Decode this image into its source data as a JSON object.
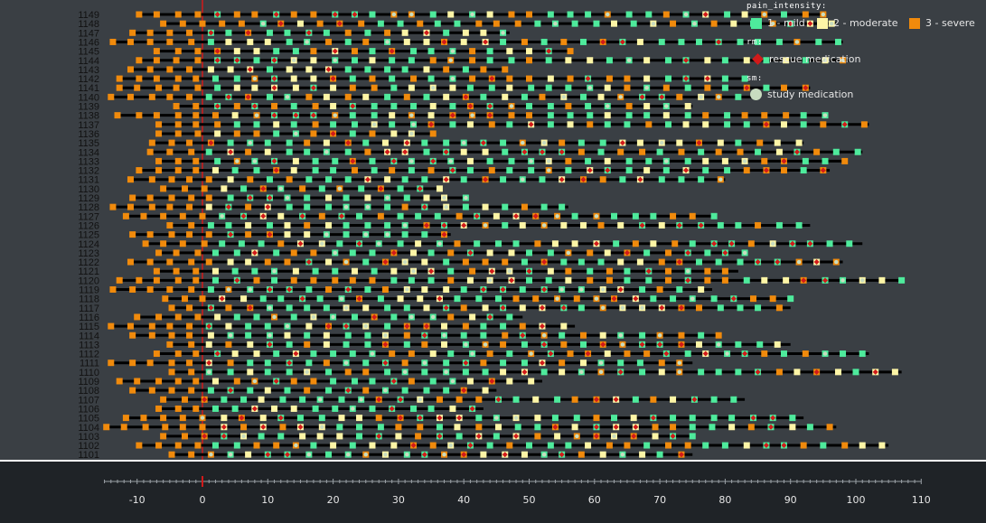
{
  "subjects": [
    "1149",
    "1148",
    "1147",
    "1146",
    "1145",
    "1144",
    "1143",
    "1142",
    "1141",
    "1140",
    "1139",
    "1138",
    "1137",
    "1136",
    "1135",
    "1134",
    "1133",
    "1132",
    "1131",
    "1130",
    "1129",
    "1128",
    "1127",
    "1126",
    "1125",
    "1124",
    "1123",
    "1122",
    "1121",
    "1120",
    "1119",
    "1118",
    "1117",
    "1116",
    "1115",
    "1114",
    "1113",
    "1112",
    "1111",
    "1110",
    "1109",
    "1108",
    "1107",
    "1106",
    "1105",
    "1104",
    "1103",
    "1102",
    "1101",
    "1100"
  ],
  "legend": {
    "pain_title": "pain_intensity:",
    "pain_items": [
      {
        "label": "1 - mild",
        "color": "#4eea9c"
      },
      {
        "label": "2 - moderate",
        "color": "#fdf5a6"
      },
      {
        "label": "3 - severe",
        "color": "#f08a0c"
      }
    ],
    "rm_title": "rm:",
    "rm_label": "rescue medication",
    "rm_color": "#d11a1a",
    "sm_title": "sm:",
    "sm_label": "study medication",
    "sm_color": "#c8dcc0"
  },
  "axis": {
    "ticks": [
      "-10",
      "0",
      "10",
      "20",
      "30",
      "40",
      "50",
      "60",
      "70",
      "80",
      "90",
      "100",
      "110"
    ]
  },
  "colors": {
    "background": "#3a3f44",
    "axis_background": "#1f2327",
    "track": "#000000",
    "day_zero_marker": "#d11a1a"
  }
}
